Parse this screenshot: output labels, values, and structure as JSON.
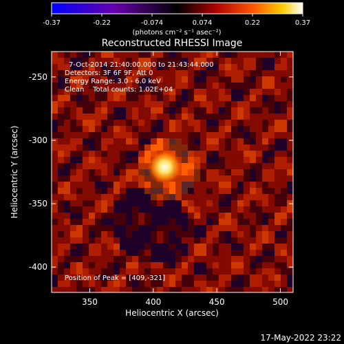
{
  "chart_data": {
    "type": "heatmap",
    "title": "Reconstructed RHESSI Image",
    "xlabel": "Heliocentric X (arcsec)",
    "ylabel": "Heliocentric Y (arcsec)",
    "xlim": [
      320,
      510
    ],
    "ylim": [
      -420,
      -230
    ],
    "xticks": [
      350,
      400,
      450,
      500
    ],
    "yticks": [
      -250,
      -300,
      -350,
      -400
    ],
    "colorbar": {
      "min": -0.37,
      "max": 0.37,
      "ticks": [
        "-0.37",
        "-0.22",
        "-0.074",
        "0.074",
        "0.22",
        "0.37"
      ],
      "unit_label": "(photons cm⁻² s⁻¹ asec⁻²)",
      "colormap": [
        "#0000ff",
        "#6600aa",
        "#000000",
        "#aa0000",
        "#ff5500",
        "#ffcc00",
        "#ffffff"
      ]
    },
    "info_lines": [
      "7-Oct-2014 21:40:00.000 to 21:43:44.000",
      "Detectors: 3F 6F 9F, Att 0",
      "Energy Range: 3.0 - 6.0 keV",
      "Clean    Total counts: 1.02E+04"
    ],
    "peak": {
      "label": "Position of Peak = [409,-321]",
      "x": 409,
      "y": -321
    },
    "timestamp": "17-May-2022 23:22"
  }
}
